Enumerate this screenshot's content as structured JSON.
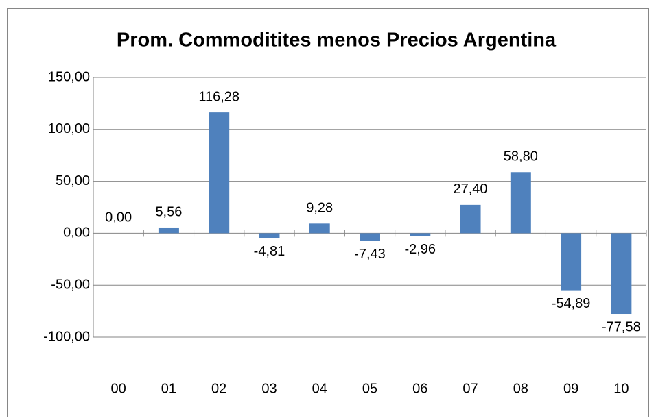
{
  "chart_data": {
    "type": "bar",
    "title": "Prom. Commoditites menos Precios Argentina",
    "categories": [
      "00",
      "01",
      "02",
      "03",
      "04",
      "05",
      "06",
      "07",
      "08",
      "09",
      "10"
    ],
    "values": [
      0,
      5.56,
      116.28,
      -4.81,
      9.28,
      -7.43,
      -2.96,
      27.4,
      58.8,
      -54.89,
      -77.58
    ],
    "value_labels": [
      "0,00",
      "5,56",
      "116,28",
      "-4,81",
      "9,28",
      "-7,43",
      "-2,96",
      "27,40",
      "58,80",
      "-54,89",
      "-77,58"
    ],
    "color": "#4f81bd",
    "ylim": [
      -100,
      150
    ],
    "yticks": [
      {
        "value": -100,
        "label": "-100,00"
      },
      {
        "value": -50,
        "label": "-50,00"
      },
      {
        "value": 0,
        "label": "0,00"
      },
      {
        "value": 50,
        "label": "50,00"
      },
      {
        "value": 100,
        "label": "100,00"
      },
      {
        "value": 150,
        "label": "150,00"
      }
    ],
    "grid": true
  }
}
